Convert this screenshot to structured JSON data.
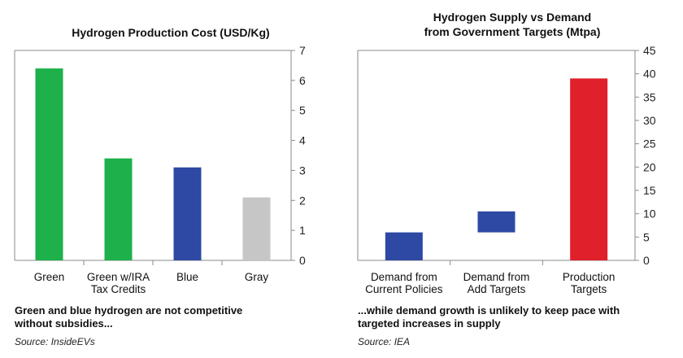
{
  "chart_data": [
    {
      "type": "bar",
      "title": "Hydrogen Production Cost (USD/Kg)",
      "categories": [
        [
          "Green"
        ],
        [
          "Green w/IRA",
          "Tax Credits"
        ],
        [
          "Blue"
        ],
        [
          "Gray"
        ]
      ],
      "values": [
        6.4,
        3.4,
        3.1,
        2.1
      ],
      "colors": [
        "#1db04b",
        "#1db04b",
        "#2d49a3",
        "#c6c6c6"
      ],
      "ylim": [
        0,
        7
      ],
      "yticks": [
        0,
        1,
        2,
        3,
        4,
        5,
        6,
        7
      ],
      "y_axis_side": "right",
      "caption": "Green and blue hydrogen are not competitive without subsidies...",
      "source": "Source: InsideEVs"
    },
    {
      "type": "waterfall",
      "title_lines": [
        "Hydrogen Supply vs Demand",
        "from Government Targets (Mtpa)"
      ],
      "categories": [
        [
          "Demand from",
          "Current Policies"
        ],
        [
          "Demand from",
          "Add Targets"
        ],
        [
          "Production",
          "Targets"
        ]
      ],
      "bars": [
        {
          "start": 0,
          "end": 6,
          "color": "#2d49a3"
        },
        {
          "start": 6,
          "end": 10.5,
          "color": "#2d49a3"
        },
        {
          "start": 0,
          "end": 39,
          "color": "#e0202a"
        }
      ],
      "ylim": [
        0,
        45
      ],
      "yticks": [
        0,
        5,
        10,
        15,
        20,
        25,
        30,
        35,
        40,
        45
      ],
      "y_axis_side": "right",
      "caption": "...while demand growth is unlikely to keep pace with targeted increases in supply",
      "source": "Source: IEA"
    }
  ]
}
